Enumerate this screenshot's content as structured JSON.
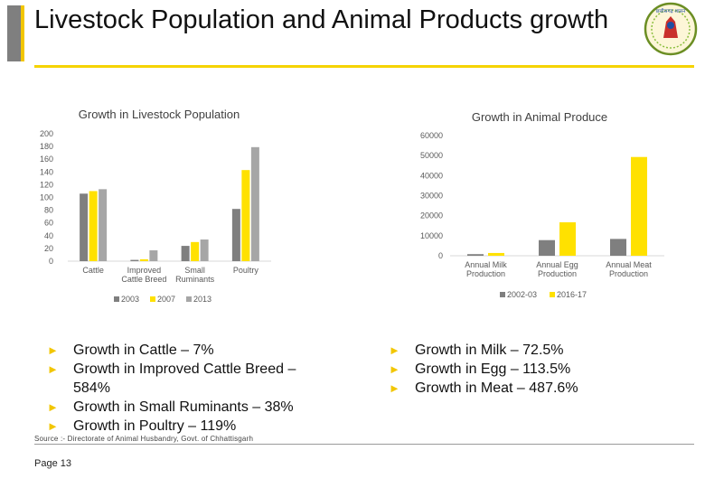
{
  "slide": {
    "title": "Livestock Population and Animal Products growth",
    "source": "Source :- Directorate of Animal Husbandry, Govt. of Chhattisgarh",
    "page": "Page 13",
    "emblem_text": "छत्तीसगढ़ शासन",
    "bullet_marker": "►"
  },
  "left_bullets": [
    "Growth in Cattle – 7%",
    "Growth in Improved Cattle Breed – 584%",
    "Growth in Small Ruminants – 38%",
    "Growth in Poultry – 119%"
  ],
  "right_bullets": [
    "Growth in Milk – 72.5%",
    "Growth in Egg – 113.5%",
    "Growth in Meat – 487.6%"
  ],
  "colors": {
    "accent_yellow": "#f2c600",
    "title_rule": "#f5d300",
    "series_dark": "#7f7f7f",
    "series_yellow": "#ffe100",
    "series_light": "#a6a6a6",
    "axis_text": "#595959"
  },
  "chart_data": [
    {
      "type": "bar",
      "title": "Growth in Livestock Population",
      "categories": [
        "Cattle",
        "Improved Cattle Breed",
        "Small Ruminants",
        "Poultry"
      ],
      "category_lines": [
        [
          "Cattle"
        ],
        [
          "Improved",
          "Cattle Breed"
        ],
        [
          "Small",
          "Ruminants"
        ],
        [
          "Poultry"
        ]
      ],
      "series": [
        {
          "name": "2003",
          "values": [
            106,
            2,
            24,
            82
          ]
        },
        {
          "name": "2007",
          "values": [
            110,
            3,
            30,
            143
          ]
        },
        {
          "name": "2013",
          "values": [
            113,
            17,
            34,
            179
          ]
        }
      ],
      "ylim": [
        0,
        200
      ],
      "ticks": [
        0,
        20,
        40,
        60,
        80,
        100,
        120,
        140,
        160,
        180,
        200
      ],
      "grid": false,
      "legend": "bottom"
    },
    {
      "type": "bar",
      "title": "Growth in Animal Produce",
      "categories": [
        "Annual Milk Production",
        "Annual Egg Production",
        "Annual Meat Production"
      ],
      "category_lines": [
        [
          "Annual Milk",
          "Production"
        ],
        [
          "Annual Egg",
          "Production"
        ],
        [
          "Annual Meat",
          "Production"
        ]
      ],
      "series": [
        {
          "name": "2002-03",
          "values": [
            800,
            7800,
            8400
          ]
        },
        {
          "name": "2016-17",
          "values": [
            1380,
            16700,
            49300
          ]
        }
      ],
      "ylim": [
        0,
        60000
      ],
      "ticks": [
        0,
        10000,
        20000,
        30000,
        40000,
        50000,
        60000
      ],
      "grid": false,
      "legend": "bottom"
    }
  ]
}
